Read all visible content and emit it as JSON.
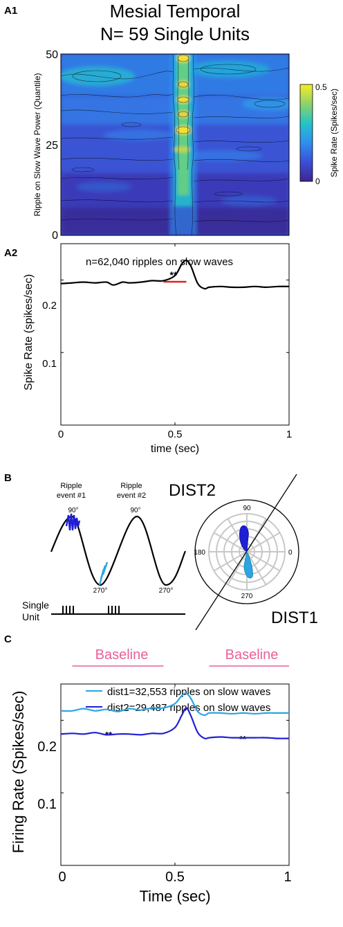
{
  "panel_a1": {
    "label": "A1",
    "title_line1": "Mesial Temporal",
    "title_line2": "N= 59 Single Units",
    "ylabel": "Ripple on Slow Wave Power (Quantile)",
    "yticks": [
      "0",
      "25",
      "50"
    ],
    "colorbar_label": "Spike Rate (Spikes/sec)",
    "colorbar_ticks": [
      "0.5",
      "0"
    ]
  },
  "panel_a2": {
    "label": "A2",
    "annotation": "n=62,040 ripples on slow waves",
    "sig": "**",
    "sig_color": "#e0201b"
  },
  "panel_b": {
    "label": "B",
    "ripple1_line1": "Ripple",
    "ripple1_line2": "event #1",
    "ripple2_line1": "Ripple",
    "ripple2_line2": "event #2",
    "deg_90_a": "90°",
    "deg_90_b": "90°",
    "deg_270_a": "270°",
    "deg_270_b": "270°",
    "single_line1": "Single",
    "single_line2": "Unit",
    "dist2_label": "DIST2",
    "dist1_label": "DIST1",
    "polar_90": "90",
    "polar_180": "180",
    "polar_0": "0",
    "polar_270": "270",
    "ripple1_color": "#1f1fd6",
    "ripple2_color": "#2aa6e0"
  },
  "panel_c": {
    "label": "C",
    "baseline_left": "Baseline",
    "baseline_right": "Baseline",
    "baseline_color": "#ea5f9a",
    "sig_left": "**",
    "sig_right": "**"
  },
  "chart_data": [
    {
      "type": "heatmap",
      "ylabel": "Ripple on Slow Wave Power (Quantile)",
      "y_ticks": [
        0,
        25,
        50
      ],
      "ylim": [
        0,
        50
      ],
      "colorbar": {
        "label": "Spike Rate (Spikes/sec)",
        "range": [
          0,
          0.5
        ]
      }
    },
    {
      "type": "line",
      "xlabel": "time (sec)",
      "ylabel": "Spike Rate (spikes/sec)",
      "xlim": [
        0,
        1
      ],
      "ylim": [
        0,
        0.25
      ],
      "x_ticks": [
        0,
        0.5,
        1
      ],
      "y_ticks": [
        0.1,
        0.2
      ],
      "x_tick_labels": [
        "0",
        "0.5",
        "1"
      ],
      "y_tick_labels": [
        "0.1",
        "0.2"
      ],
      "annotation": "n=62,040 ripples on slow waves",
      "significance_interval": [
        0.45,
        0.55
      ],
      "series": [
        {
          "color": "#000000",
          "x": [
            0,
            0.05,
            0.1,
            0.15,
            0.2,
            0.23,
            0.27,
            0.3,
            0.35,
            0.4,
            0.45,
            0.5,
            0.53,
            0.55,
            0.57,
            0.6,
            0.63,
            0.65,
            0.7,
            0.75,
            0.8,
            0.85,
            0.9,
            0.95,
            1
          ],
          "y": [
            0.195,
            0.196,
            0.197,
            0.196,
            0.197,
            0.193,
            0.197,
            0.196,
            0.197,
            0.199,
            0.199,
            0.206,
            0.222,
            0.227,
            0.219,
            0.195,
            0.188,
            0.19,
            0.191,
            0.19,
            0.19,
            0.191,
            0.19,
            0.191,
            0.191
          ]
        }
      ]
    },
    {
      "type": "line",
      "xlabel": "Time (sec)",
      "ylabel": "Firing Rate (Spikes/sec)",
      "xlim": [
        0,
        1
      ],
      "ylim": [
        0,
        0.25
      ],
      "x_ticks": [
        0,
        0.5,
        1
      ],
      "y_ticks": [
        0.1,
        0.2
      ],
      "x_tick_labels": [
        "0",
        "0.5",
        "1"
      ],
      "y_tick_labels": [
        "0.1",
        "0.2"
      ],
      "baseline_intervals": [
        [
          0.05,
          0.45
        ],
        [
          0.65,
          1.0
        ]
      ],
      "legend_position": "top",
      "series": [
        {
          "name": "dist1=32,553 ripples on slow waves",
          "color": "#2aa6e0",
          "x": [
            0,
            0.05,
            0.1,
            0.15,
            0.2,
            0.25,
            0.3,
            0.35,
            0.4,
            0.45,
            0.5,
            0.53,
            0.55,
            0.57,
            0.6,
            0.63,
            0.65,
            0.7,
            0.75,
            0.8,
            0.85,
            0.9,
            0.95,
            1
          ],
          "y": [
            0.213,
            0.213,
            0.216,
            0.213,
            0.215,
            0.212,
            0.216,
            0.214,
            0.217,
            0.217,
            0.223,
            0.234,
            0.237,
            0.23,
            0.212,
            0.207,
            0.21,
            0.21,
            0.209,
            0.21,
            0.209,
            0.21,
            0.21,
            0.21
          ]
        },
        {
          "name": "dist2=29,487 ripples on slow waves",
          "color": "#1f1fd6",
          "x": [
            0,
            0.05,
            0.1,
            0.15,
            0.2,
            0.25,
            0.3,
            0.35,
            0.4,
            0.45,
            0.5,
            0.53,
            0.55,
            0.57,
            0.6,
            0.63,
            0.65,
            0.7,
            0.75,
            0.8,
            0.85,
            0.9,
            0.95,
            1
          ],
          "y": [
            0.181,
            0.182,
            0.181,
            0.183,
            0.18,
            0.181,
            0.181,
            0.18,
            0.182,
            0.182,
            0.19,
            0.207,
            0.217,
            0.206,
            0.183,
            0.175,
            0.176,
            0.177,
            0.176,
            0.176,
            0.176,
            0.176,
            0.175,
            0.175
          ]
        }
      ]
    }
  ]
}
